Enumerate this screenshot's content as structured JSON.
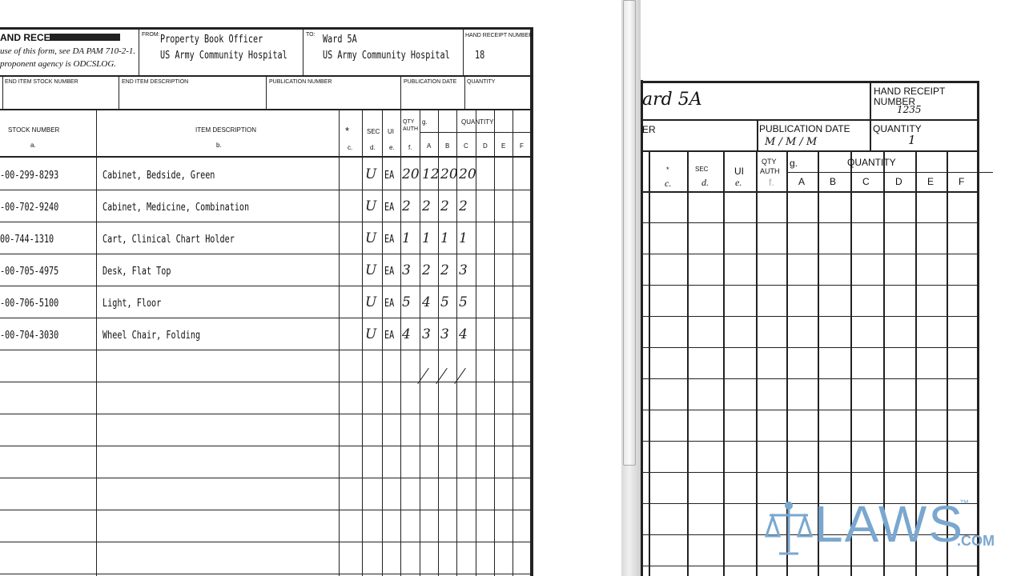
{
  "left_form": {
    "title": "AND RECEIPT/",
    "instructions": [
      "use of this form, see DA PAM 710-2-1.",
      "proponent agency is ODCSLOG."
    ],
    "from_label": "FROM:",
    "from": [
      "Property Book Officer",
      "US Army Community Hospital"
    ],
    "to_label": "TO:",
    "to": [
      "Ward 5A",
      "US Army Community Hospital"
    ],
    "hand_receipt_label": "HAND RECEIPT NUMBER",
    "hand_receipt_number": "18",
    "row2_labels": [
      "END ITEM STOCK NUMBER",
      "END ITEM DESCRIPTION",
      "PUBLICATION NUMBER",
      "PUBLICATION DATE",
      "QUANTITY"
    ],
    "col_headers": {
      "stock": "STOCK NUMBER",
      "stock_sub": "a.",
      "desc": "ITEM DESCRIPTION",
      "desc_sub": "b.",
      "star": "*",
      "star_sub": "c.",
      "sec": "SEC",
      "sec_sub": "d.",
      "ui": "UI",
      "ui_sub": "e.",
      "qty_auth": "QTY AUTH",
      "qty_sub": "f.",
      "g": "g.",
      "quantity": "QUANTITY",
      "letters": [
        "A",
        "B",
        "C",
        "D",
        "E",
        "F"
      ]
    },
    "rows": [
      {
        "stock": "-00-299-8293",
        "desc": "Cabinet, Bedside, Green",
        "sec": "U",
        "ui": "EA",
        "auth": "20",
        "qty": [
          "12",
          "20",
          "20"
        ]
      },
      {
        "stock": "-00-702-9240",
        "desc": "Cabinet, Medicine, Combination",
        "sec": "U",
        "ui": "EA",
        "auth": "2",
        "qty": [
          "2",
          "2",
          "2"
        ]
      },
      {
        "stock": "00-744-1310",
        "desc": "Cart, Clinical Chart Holder",
        "sec": "U",
        "ui": "EA",
        "auth": "1",
        "qty": [
          "1",
          "1",
          "1"
        ]
      },
      {
        "stock": "-00-705-4975",
        "desc": "Desk, Flat Top",
        "sec": "U",
        "ui": "EA",
        "auth": "3",
        "qty": [
          "2",
          "2",
          "3"
        ]
      },
      {
        "stock": "-00-706-5100",
        "desc": "Light, Floor",
        "sec": "U",
        "ui": "EA",
        "auth": "5",
        "qty": [
          "4",
          "5",
          "5"
        ]
      },
      {
        "stock": "-00-704-3030",
        "desc": "Wheel Chair, Folding",
        "sec": "U",
        "ui": "EA",
        "auth": "4",
        "qty": [
          "3",
          "3",
          "4"
        ]
      }
    ]
  },
  "right_form": {
    "to_handwritten": "ard 5A",
    "hand_receipt_label": [
      "HAND RECEIPT",
      "NUMBER"
    ],
    "hand_receipt_number": "1235",
    "er_fragment": "ER",
    "pub_date_label": "PUBLICATION DATE",
    "pub_date_value": "M / M / M",
    "quantity_label": "QUANTITY",
    "quantity_value": "1",
    "col": {
      "star": "*",
      "star_sub": "c.",
      "sec": "SEC",
      "sec_sub": "d.",
      "ui": "UI",
      "ui_sub": "e.",
      "qty_auth": [
        "QTY",
        "AUTH"
      ],
      "qty_sub": "f.",
      "g": "g.",
      "quantity": "QUANTITY",
      "letters": [
        "A",
        "B",
        "C",
        "D",
        "E",
        "F"
      ]
    }
  },
  "logo": {
    "text": "LAWS",
    "tm": "™",
    "com": ".COM",
    "color": "#7aa7cf"
  }
}
